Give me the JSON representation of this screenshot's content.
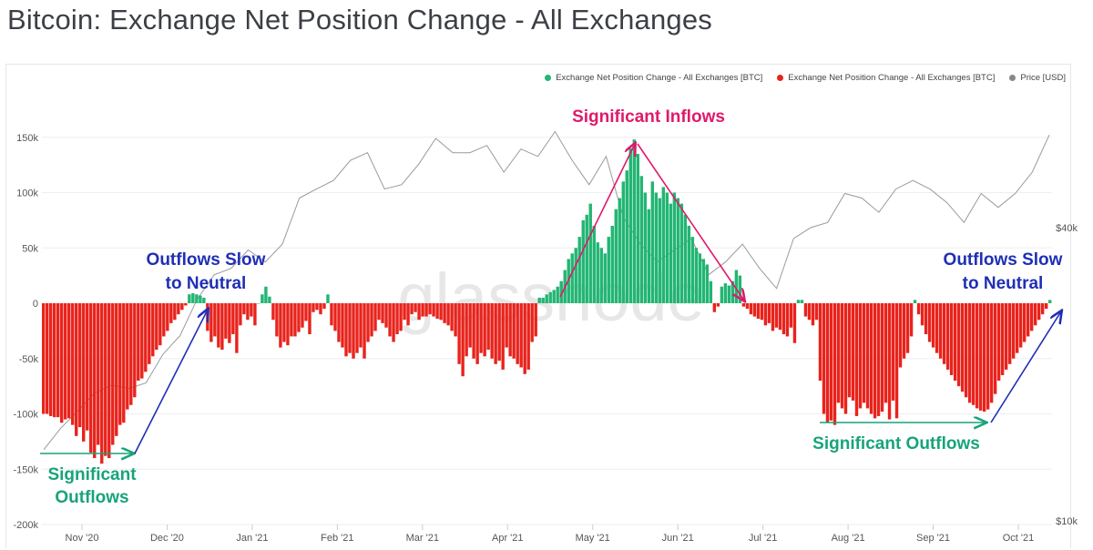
{
  "title": "Bitcoin: Exchange Net Position Change - All Exchanges",
  "watermark": "glassnode",
  "legend": [
    {
      "label": "Exchange Net Position Change - All Exchanges [BTC]",
      "color": "#22b573"
    },
    {
      "label": "Exchange Net Position Change - All Exchanges [BTC]",
      "color": "#e8231c"
    },
    {
      "label": "Price [USD]",
      "color": "#888888"
    }
  ],
  "annotations": {
    "inflows": "Significant Inflows",
    "outflows_left_1": "Significant",
    "outflows_left_2": "Outflows",
    "slow_left_1": "Outflows Slow",
    "slow_left_2": "to Neutral",
    "slow_right_1": "Outflows Slow",
    "slow_right_2": "to Neutral",
    "outflows_right": "Significant Outflows"
  },
  "colors": {
    "inflow": "#22b573",
    "outflow": "#e8231c",
    "price": "#9a9a9a",
    "annotation_pink": "#e0196b",
    "annotation_blue": "#1f2fb5",
    "annotation_green": "#17a47a"
  },
  "chart_data": {
    "type": "bar",
    "x_ticks": [
      "Nov '20",
      "Dec '20",
      "Jan '21",
      "Feb '21",
      "Mar '21",
      "Apr '21",
      "May '21",
      "Jun '21",
      "Jul '21",
      "Aug '21",
      "Sep '21",
      "Oct '21"
    ],
    "y_left_ticks": [
      "150k",
      "100k",
      "50k",
      "0",
      "-50k",
      "-100k",
      "-150k",
      "-200k"
    ],
    "y_right_ticks": [
      "$40k",
      "$10k"
    ],
    "ylim": [
      -200000,
      150000
    ],
    "y_right_scale": "log",
    "y_right_lim": [
      10000,
      70000
    ],
    "net_position_btc": [
      -100000,
      -100000,
      -102000,
      -103000,
      -103000,
      -108000,
      -105000,
      -104000,
      -110000,
      -120000,
      -112000,
      -125000,
      -115000,
      -135000,
      -140000,
      -128000,
      -145000,
      -138000,
      -140000,
      -128000,
      -120000,
      -110000,
      -108000,
      -96000,
      -92000,
      -85000,
      -70000,
      -68000,
      -62000,
      -55000,
      -48000,
      -42000,
      -38000,
      -30000,
      -25000,
      -18000,
      -15000,
      -10000,
      -6000,
      -2000,
      8000,
      9000,
      8000,
      7000,
      5000,
      -25000,
      -35000,
      -30000,
      -40000,
      -42000,
      -32000,
      -36000,
      -28000,
      -45000,
      -20000,
      -10000,
      -15000,
      -12000,
      -20000,
      0,
      8000,
      15000,
      6000,
      -15000,
      -30000,
      -40000,
      -35000,
      -38000,
      -30000,
      -30000,
      -26000,
      -22000,
      -16000,
      -28000,
      -8000,
      -6000,
      -10000,
      -5000,
      8000,
      -20000,
      -25000,
      -35000,
      -40000,
      -48000,
      -45000,
      -50000,
      -45000,
      -40000,
      -50000,
      -35000,
      -30000,
      -25000,
      -15000,
      -18000,
      -22000,
      -30000,
      -35000,
      -28000,
      -25000,
      -15000,
      -20000,
      -10000,
      -8000,
      -15000,
      -12000,
      -12000,
      -10000,
      -12000,
      -14000,
      -15000,
      -18000,
      -20000,
      -25000,
      -30000,
      -55000,
      -66000,
      -48000,
      -40000,
      -50000,
      -55000,
      -45000,
      -48000,
      -42000,
      -50000,
      -55000,
      -52000,
      -60000,
      -40000,
      -48000,
      -50000,
      -55000,
      -58000,
      -64000,
      -60000,
      -35000,
      -30000,
      5000,
      5000,
      8000,
      10000,
      12000,
      15000,
      20000,
      30000,
      40000,
      45000,
      50000,
      60000,
      75000,
      80000,
      90000,
      70000,
      55000,
      50000,
      45000,
      60000,
      70000,
      85000,
      95000,
      110000,
      120000,
      140000,
      148000,
      135000,
      115000,
      100000,
      85000,
      110000,
      100000,
      95000,
      105000,
      100000,
      90000,
      100000,
      95000,
      90000,
      80000,
      70000,
      60000,
      50000,
      45000,
      40000,
      35000,
      20000,
      -8000,
      -3000,
      15000,
      18000,
      16000,
      20000,
      30000,
      25000,
      -3000,
      -5000,
      -10000,
      -12000,
      -14000,
      -15000,
      -20000,
      -18000,
      -25000,
      -22000,
      -24000,
      -28000,
      -30000,
      -22000,
      -36000,
      3000,
      3000,
      -12000,
      -15000,
      -20000,
      -15000,
      -70000,
      -100000,
      -108000,
      -106000,
      -110000,
      -90000,
      -95000,
      -100000,
      -85000,
      -88000,
      -102000,
      -95000,
      -90000,
      -95000,
      -100000,
      -104000,
      -102000,
      -98000,
      -90000,
      -105000,
      -88000,
      -104000,
      -58000,
      -50000,
      -45000,
      -30000,
      3000,
      -10000,
      -20000,
      -28000,
      -35000,
      -40000,
      -45000,
      -50000,
      -55000,
      -60000,
      -65000,
      -70000,
      -75000,
      -80000,
      -85000,
      -90000,
      -92000,
      -95000,
      -97000,
      -98000,
      -96000,
      -90000,
      -82000,
      -70000,
      -65000,
      -60000,
      -55000,
      -50000,
      -45000,
      -40000,
      -35000,
      -30000,
      -25000,
      -20000,
      -15000,
      -10000,
      -5000,
      3000
    ],
    "price_usd": [
      14000,
      15500,
      16800,
      18300,
      19000,
      18700,
      19200,
      22000,
      24000,
      28500,
      32000,
      33000,
      36000,
      34000,
      37000,
      46000,
      48000,
      50000,
      55000,
      57000,
      48000,
      49000,
      54000,
      61000,
      57000,
      57000,
      59000,
      52000,
      58000,
      56000,
      63000,
      55000,
      49000,
      56000,
      42000,
      37000,
      34000,
      36000,
      38000,
      32000,
      34000,
      37000,
      33000,
      30000,
      38000,
      40000,
      41000,
      47000,
      46000,
      43000,
      48000,
      50000,
      48000,
      45000,
      41000,
      47000,
      44000,
      47000,
      52000,
      62000
    ]
  }
}
